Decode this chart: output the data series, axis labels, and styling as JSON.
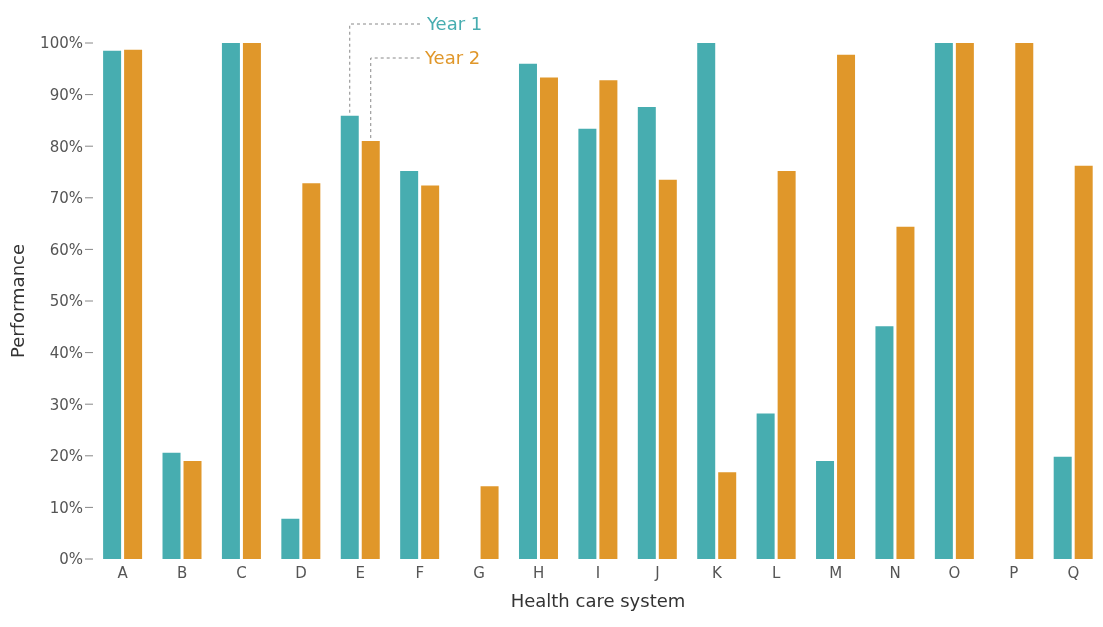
{
  "chart_data": {
    "type": "bar",
    "xlabel": "Health care system",
    "ylabel": "Performance",
    "categories": [
      "A",
      "B",
      "C",
      "D",
      "E",
      "F",
      "G",
      "H",
      "I",
      "J",
      "K",
      "L",
      "M",
      "N",
      "O",
      "P",
      "Q"
    ],
    "series": [
      {
        "name": "Year 1",
        "color": "#47adb0",
        "values": [
          98.5,
          20.6,
          100,
          7.8,
          85.9,
          75.2,
          null,
          96.0,
          83.4,
          87.6,
          100,
          28.2,
          19.0,
          45.1,
          100,
          null,
          19.8
        ]
      },
      {
        "name": "Year 2",
        "color": "#e0972a",
        "values": [
          98.7,
          19.0,
          100,
          72.8,
          81.0,
          72.4,
          14.1,
          93.3,
          92.8,
          73.5,
          16.8,
          75.2,
          97.7,
          64.4,
          100,
          100,
          76.2
        ]
      }
    ],
    "ylim": [
      0,
      100
    ],
    "yticks": [
      {
        "value": 0,
        "label": "0%"
      },
      {
        "value": 10,
        "label": "10%"
      },
      {
        "value": 20,
        "label": "20%"
      },
      {
        "value": 30,
        "label": "30%"
      },
      {
        "value": 40,
        "label": "40%"
      },
      {
        "value": 50,
        "label": "50%"
      },
      {
        "value": 60,
        "label": "60%"
      },
      {
        "value": 70,
        "label": "70%"
      },
      {
        "value": 80,
        "label": "80%"
      },
      {
        "value": 90,
        "label": "90%"
      },
      {
        "value": 100,
        "label": "100%"
      }
    ],
    "grid": false,
    "legend": false
  }
}
